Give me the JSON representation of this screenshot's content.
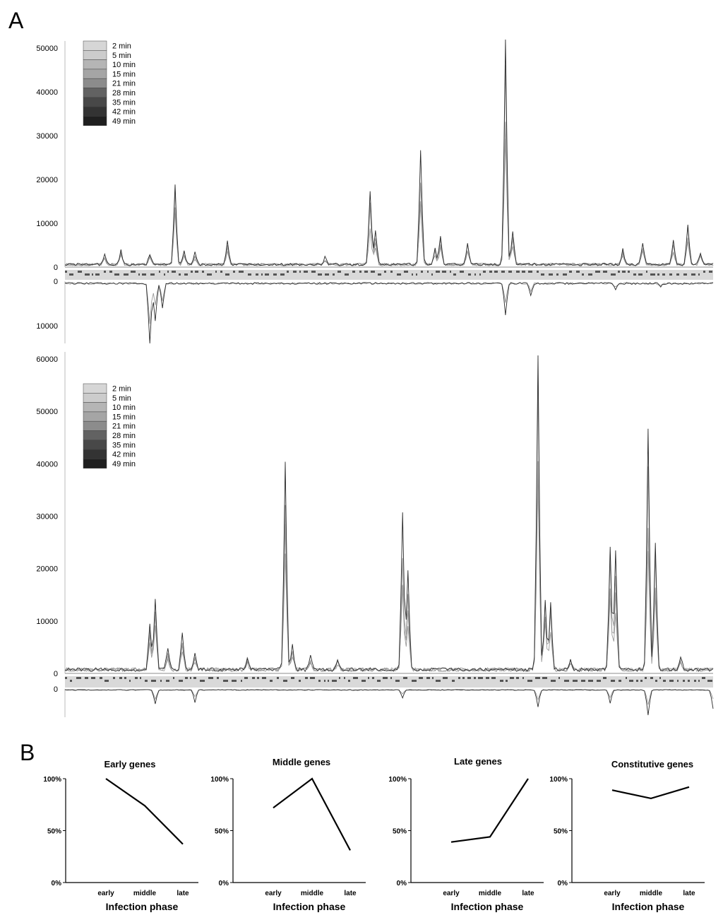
{
  "panel_labels": [
    "A",
    "B"
  ],
  "colors": {
    "trace": "#2a2a2a",
    "trace_light": "#9a9a9a",
    "axis": "#000000",
    "gene_track_bg": "#d9d9d9",
    "gene_track_mark": "#555555",
    "legend_shades": [
      "#d6d6d6",
      "#cccccc",
      "#b5b5b5",
      "#a5a5a5",
      "#8c8c8c",
      "#626262",
      "#484848",
      "#333333",
      "#1f1f1f"
    ]
  },
  "chart_data": [
    {
      "type": "line",
      "panel": "A",
      "legend": [
        "2 min",
        "5 min",
        "10 min",
        "15 min",
        "21 min",
        "28 min",
        "35 min",
        "42 min",
        "49 min"
      ],
      "legend_placement": "top-left",
      "top_track": {
        "ylim": [
          0,
          50000
        ],
        "yticks": [
          "0",
          "10000",
          "20000",
          "30000",
          "40000",
          "50000"
        ],
        "xlim": [
          0,
          1
        ],
        "peaks": [
          [
            0.06,
            2000
          ],
          [
            0.085,
            3500
          ],
          [
            0.13,
            2500
          ],
          [
            0.17,
            19000
          ],
          [
            0.185,
            3500
          ],
          [
            0.2,
            2500
          ],
          [
            0.25,
            5000
          ],
          [
            0.4,
            1500
          ],
          [
            0.47,
            17500
          ],
          [
            0.48,
            7000
          ],
          [
            0.55,
            23000
          ],
          [
            0.57,
            4000
          ],
          [
            0.58,
            7000
          ],
          [
            0.62,
            5000
          ],
          [
            0.68,
            51000
          ],
          [
            0.69,
            8500
          ],
          [
            0.86,
            3500
          ],
          [
            0.89,
            5000
          ],
          [
            0.94,
            5000
          ],
          [
            0.96,
            9500
          ],
          [
            0.98,
            3000
          ]
        ]
      },
      "bottom_track": {
        "ylim": [
          0,
          14000
        ],
        "yticks": [
          "0",
          "10000"
        ],
        "xlim": [
          0,
          1
        ],
        "dips": [
          [
            0.13,
            14000
          ],
          [
            0.14,
            8000
          ],
          [
            0.15,
            6000
          ],
          [
            0.68,
            7000
          ],
          [
            0.72,
            3000
          ],
          [
            0.85,
            1500
          ],
          [
            0.92,
            1000
          ]
        ]
      }
    },
    {
      "type": "line",
      "panel": "A",
      "legend": [
        "2 min",
        "5 min",
        "10 min",
        "15 min",
        "21 min",
        "28 min",
        "35 min",
        "42 min",
        "49 min"
      ],
      "legend_placement": "top-left",
      "top_track": {
        "ylim": [
          0,
          65000
        ],
        "yticks": [
          "0",
          "10000",
          "20000",
          "30000",
          "40000",
          "50000",
          "60000"
        ],
        "xlim": [
          0,
          1
        ],
        "peaks": [
          [
            0.13,
            10000
          ],
          [
            0.14,
            16000
          ],
          [
            0.16,
            4000
          ],
          [
            0.18,
            7000
          ],
          [
            0.2,
            3000
          ],
          [
            0.28,
            2500
          ],
          [
            0.34,
            42000
          ],
          [
            0.35,
            5000
          ],
          [
            0.38,
            2500
          ],
          [
            0.42,
            2000
          ],
          [
            0.52,
            30000
          ],
          [
            0.53,
            18000
          ],
          [
            0.73,
            67000
          ],
          [
            0.74,
            17000
          ],
          [
            0.75,
            15000
          ],
          [
            0.78,
            2000
          ],
          [
            0.84,
            25000
          ],
          [
            0.85,
            22000
          ],
          [
            0.9,
            48000
          ],
          [
            0.91,
            26000
          ],
          [
            0.95,
            2500
          ]
        ]
      },
      "bottom_track": {
        "ylim": [
          0,
          6000
        ],
        "yticks": [
          "0"
        ],
        "xlim": [
          0,
          1
        ],
        "dips": [
          [
            0.14,
            3500
          ],
          [
            0.2,
            2500
          ],
          [
            0.52,
            1500
          ],
          [
            0.73,
            4000
          ],
          [
            0.84,
            2500
          ],
          [
            0.9,
            5000
          ],
          [
            1.0,
            3500
          ]
        ]
      }
    },
    {
      "type": "line",
      "panel": "B",
      "title": "Early genes",
      "xlabel": "Infection phase",
      "categories": [
        "early",
        "middle",
        "late"
      ],
      "values": [
        100,
        74,
        37
      ],
      "yticks": [
        "0%",
        "50%",
        "100%"
      ],
      "ylim": [
        0,
        100
      ]
    },
    {
      "type": "line",
      "panel": "B",
      "title": "Middle genes",
      "xlabel": "Infection phase",
      "categories": [
        "early",
        "middle",
        "late"
      ],
      "values": [
        72,
        100,
        31
      ],
      "yticks": [
        "0%",
        "50%",
        "100%"
      ],
      "ylim": [
        0,
        100
      ]
    },
    {
      "type": "line",
      "panel": "B",
      "title": "Late genes",
      "xlabel": "Infection phase",
      "categories": [
        "early",
        "middle",
        "late"
      ],
      "values": [
        39,
        44,
        100
      ],
      "yticks": [
        "0%",
        "50%",
        "100%"
      ],
      "ylim": [
        0,
        100
      ]
    },
    {
      "type": "line",
      "panel": "B",
      "title": "Constitutive genes",
      "xlabel": "Infection phase",
      "categories": [
        "early",
        "middle",
        "late"
      ],
      "values": [
        89,
        81,
        92
      ],
      "yticks": [
        "0%",
        "50%",
        "100%"
      ],
      "ylim": [
        0,
        100
      ]
    }
  ]
}
